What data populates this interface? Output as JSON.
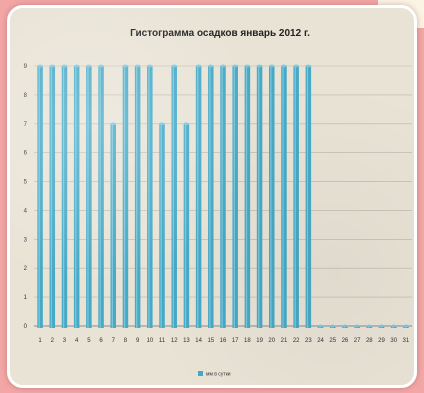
{
  "chart_data": {
    "type": "bar",
    "title": "Гистограмма осадков январь 2012 г.",
    "categories": [
      "1",
      "2",
      "3",
      "4",
      "5",
      "6",
      "7",
      "8",
      "9",
      "10",
      "11",
      "12",
      "13",
      "14",
      "15",
      "16",
      "17",
      "18",
      "19",
      "20",
      "21",
      "22",
      "23",
      "24",
      "25",
      "26",
      "27",
      "28",
      "29",
      "30",
      "31"
    ],
    "series": [
      {
        "name": "мм в сутки",
        "color": "#46a9c6",
        "values": [
          9,
          9,
          9,
          9,
          9,
          9,
          7,
          9,
          9,
          9,
          7,
          9,
          7,
          9,
          9,
          9,
          9,
          9,
          9,
          9,
          9,
          9,
          9,
          0,
          0,
          0,
          0,
          0,
          0,
          0,
          0
        ]
      }
    ],
    "ylim": [
      0,
      9
    ],
    "yticks": [
      "0",
      "1",
      "2",
      "3",
      "4",
      "5",
      "6",
      "7",
      "8",
      "9"
    ],
    "grid": true,
    "legend_position": "bottom"
  }
}
